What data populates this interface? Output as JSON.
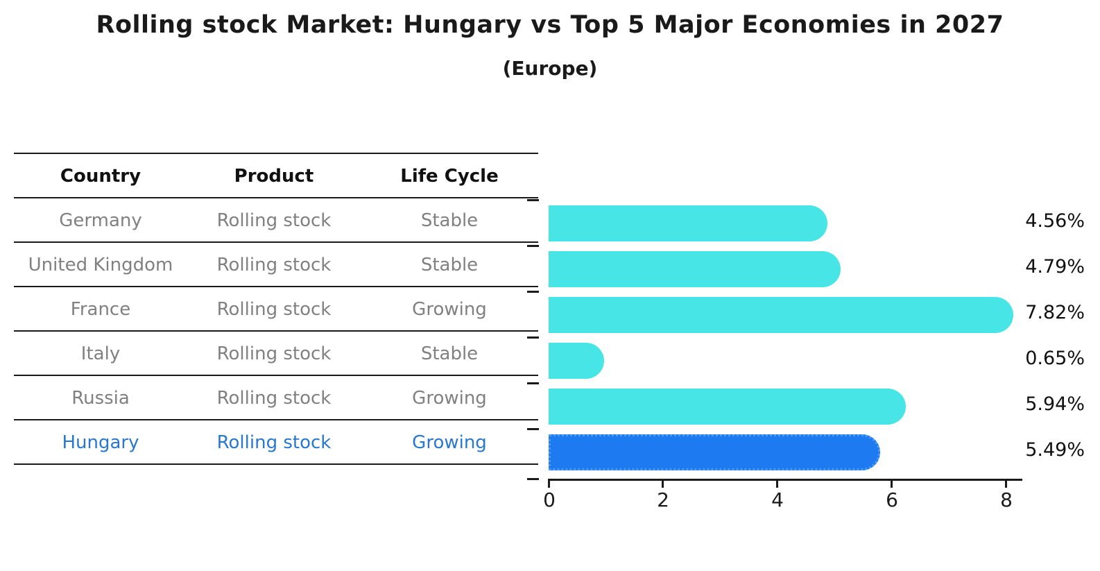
{
  "title": "Rolling stock Market: Hungary vs Top 5 Major Economies in 2027",
  "subtitle": "(Europe)",
  "table": {
    "headers": {
      "country": "Country",
      "product": "Product",
      "life_cycle": "Life Cycle"
    },
    "rows": [
      {
        "country": "Germany",
        "product": "Rolling stock",
        "life_cycle": "Stable"
      },
      {
        "country": "United Kingdom",
        "product": "Rolling stock",
        "life_cycle": "Stable"
      },
      {
        "country": "France",
        "product": "Rolling stock",
        "life_cycle": "Growing"
      },
      {
        "country": "Italy",
        "product": "Rolling stock",
        "life_cycle": "Stable"
      },
      {
        "country": "Russia",
        "product": "Rolling stock",
        "life_cycle": "Growing"
      },
      {
        "country": "Hungary",
        "product": "Rolling stock",
        "life_cycle": "Growing"
      }
    ],
    "highlight_row": "Hungary"
  },
  "chart_data": {
    "type": "bar",
    "orientation": "horizontal",
    "title": "Rolling stock Market: Hungary vs Top 5 Major Economies in 2027 (Europe)",
    "categories": [
      "Germany",
      "United Kingdom",
      "France",
      "Italy",
      "Russia",
      "Hungary"
    ],
    "values": [
      4.56,
      4.79,
      7.82,
      0.65,
      5.94,
      5.49
    ],
    "value_labels": [
      "4.56%",
      "4.79%",
      "7.82%",
      "0.65%",
      "5.94%",
      "5.49%"
    ],
    "xlim": [
      0,
      8
    ],
    "x_ticks": [
      0,
      2,
      4,
      6,
      8
    ],
    "x_tick_labels": [
      "0",
      "2",
      "4",
      "6",
      "8"
    ],
    "highlight_index": 5,
    "grid": false,
    "legend": false
  },
  "colors": {
    "bar": "#48E5E6",
    "highlight_bar": "#1E7AF0",
    "highlight_border": "#4D9BF5",
    "highlight_text": "#2878CF",
    "row_text": "#808080",
    "axis": "#1a1a1a"
  }
}
